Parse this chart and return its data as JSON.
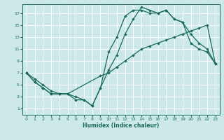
{
  "xlabel": "Humidex (Indice chaleur)",
  "xlim": [
    -0.5,
    23.5
  ],
  "ylim": [
    0,
    18.5
  ],
  "yticks": [
    1,
    3,
    5,
    7,
    9,
    11,
    13,
    15,
    17
  ],
  "xticks": [
    0,
    1,
    2,
    3,
    4,
    5,
    6,
    7,
    8,
    9,
    10,
    11,
    12,
    13,
    14,
    15,
    16,
    17,
    18,
    19,
    20,
    21,
    22,
    23
  ],
  "line_color": "#1a6b5a",
  "background_color": "#cce8e8",
  "grid_color": "#ffffff",
  "line1_x": [
    0,
    1,
    2,
    3,
    4,
    5,
    6,
    7,
    8,
    9,
    10,
    11,
    12,
    13,
    14,
    15,
    16,
    17,
    18,
    19,
    20,
    21,
    22,
    23
  ],
  "line1_y": [
    7,
    6,
    5,
    4,
    3.5,
    3.5,
    2.5,
    2.5,
    1.5,
    4.5,
    10.5,
    13,
    16.5,
    17.5,
    17.5,
    17,
    17,
    17.5,
    16,
    15.5,
    12,
    11,
    10.5,
    8.5
  ],
  "line2_x": [
    0,
    1,
    2,
    3,
    4,
    5,
    9,
    10,
    11,
    12,
    13,
    14,
    15,
    16,
    17,
    18,
    19,
    20,
    21,
    22,
    23
  ],
  "line2_y": [
    7,
    5.5,
    4.5,
    3.5,
    3.5,
    3.5,
    6.5,
    7,
    8,
    9,
    10,
    11,
    11.5,
    12,
    12.5,
    13,
    13.5,
    14,
    14.5,
    15,
    8.5
  ],
  "line3_x": [
    0,
    1,
    2,
    3,
    4,
    5,
    6,
    7,
    8,
    9,
    10,
    11,
    12,
    13,
    14,
    15,
    16,
    17,
    18,
    19,
    20,
    21,
    22,
    23
  ],
  "line3_y": [
    7,
    5.5,
    4.5,
    3.5,
    3.5,
    3.5,
    3,
    2.5,
    1.5,
    4.5,
    7.5,
    10,
    13.5,
    16,
    18,
    17.5,
    17,
    17.5,
    16,
    15.5,
    13.5,
    12,
    11,
    8.5
  ]
}
